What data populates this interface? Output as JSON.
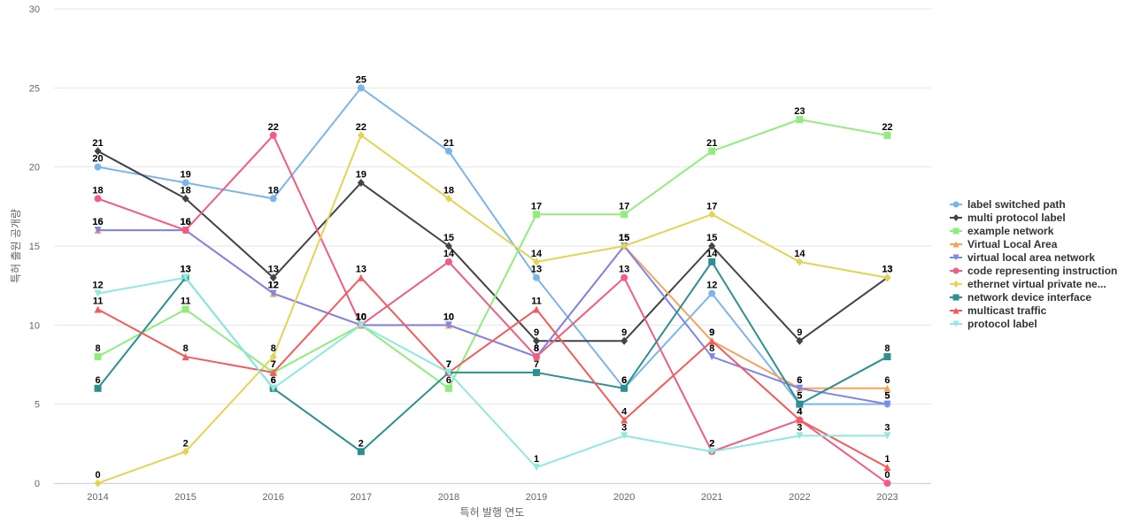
{
  "chart_data": {
    "type": "line",
    "title": "",
    "xlabel": "특허 발행 연도",
    "ylabel": "특허 출원 공개량",
    "x": [
      "2014",
      "2015",
      "2016",
      "2017",
      "2018",
      "2019",
      "2020",
      "2021",
      "2022",
      "2023"
    ],
    "ylim": [
      0,
      30
    ],
    "yticks": [
      0,
      5,
      10,
      15,
      20,
      25,
      30
    ],
    "grid": true,
    "legend_position": "right",
    "series": [
      {
        "name": "label switched path",
        "values": [
          20,
          19,
          18,
          25,
          21,
          13,
          6,
          12,
          5,
          5
        ],
        "color": "#7cb5ec",
        "marker": "circle"
      },
      {
        "name": "multi protocol label",
        "values": [
          21,
          18,
          13,
          19,
          15,
          9,
          9,
          15,
          9,
          13
        ],
        "color": "#434348",
        "marker": "diamond"
      },
      {
        "name": "example network",
        "values": [
          8,
          11,
          7,
          10,
          6,
          17,
          17,
          21,
          23,
          22
        ],
        "color": "#90ed7d",
        "marker": "square"
      },
      {
        "name": "Virtual Local Area",
        "values": [
          16,
          16,
          12,
          10,
          10,
          8,
          15,
          9,
          6,
          6
        ],
        "color": "#f7a35c",
        "marker": "triangle"
      },
      {
        "name": "virtual local area network",
        "values": [
          16,
          16,
          12,
          10,
          10,
          8,
          15,
          8,
          6,
          5
        ],
        "color": "#8085e9",
        "marker": "triangle-down"
      },
      {
        "name": "code representing instruction",
        "values": [
          18,
          16,
          22,
          10,
          14,
          8,
          13,
          2,
          4,
          0
        ],
        "color": "#f15c80",
        "marker": "circle"
      },
      {
        "name": "ethernet virtual private ne...",
        "values": [
          0,
          2,
          8,
          22,
          18,
          14,
          15,
          17,
          14,
          13
        ],
        "color": "#e4d354",
        "marker": "diamond"
      },
      {
        "name": "network device interface",
        "values": [
          6,
          13,
          6,
          2,
          7,
          7,
          6,
          14,
          5,
          8
        ],
        "color": "#2b908f",
        "marker": "square"
      },
      {
        "name": "multicast traffic",
        "values": [
          11,
          8,
          7,
          13,
          7,
          11,
          4,
          9,
          4,
          1
        ],
        "color": "#f45b5b",
        "marker": "triangle"
      },
      {
        "name": "protocol label",
        "values": [
          12,
          13,
          6,
          10,
          7,
          1,
          3,
          2,
          3,
          3
        ],
        "color": "#91e8e1",
        "marker": "triangle-down"
      }
    ]
  }
}
